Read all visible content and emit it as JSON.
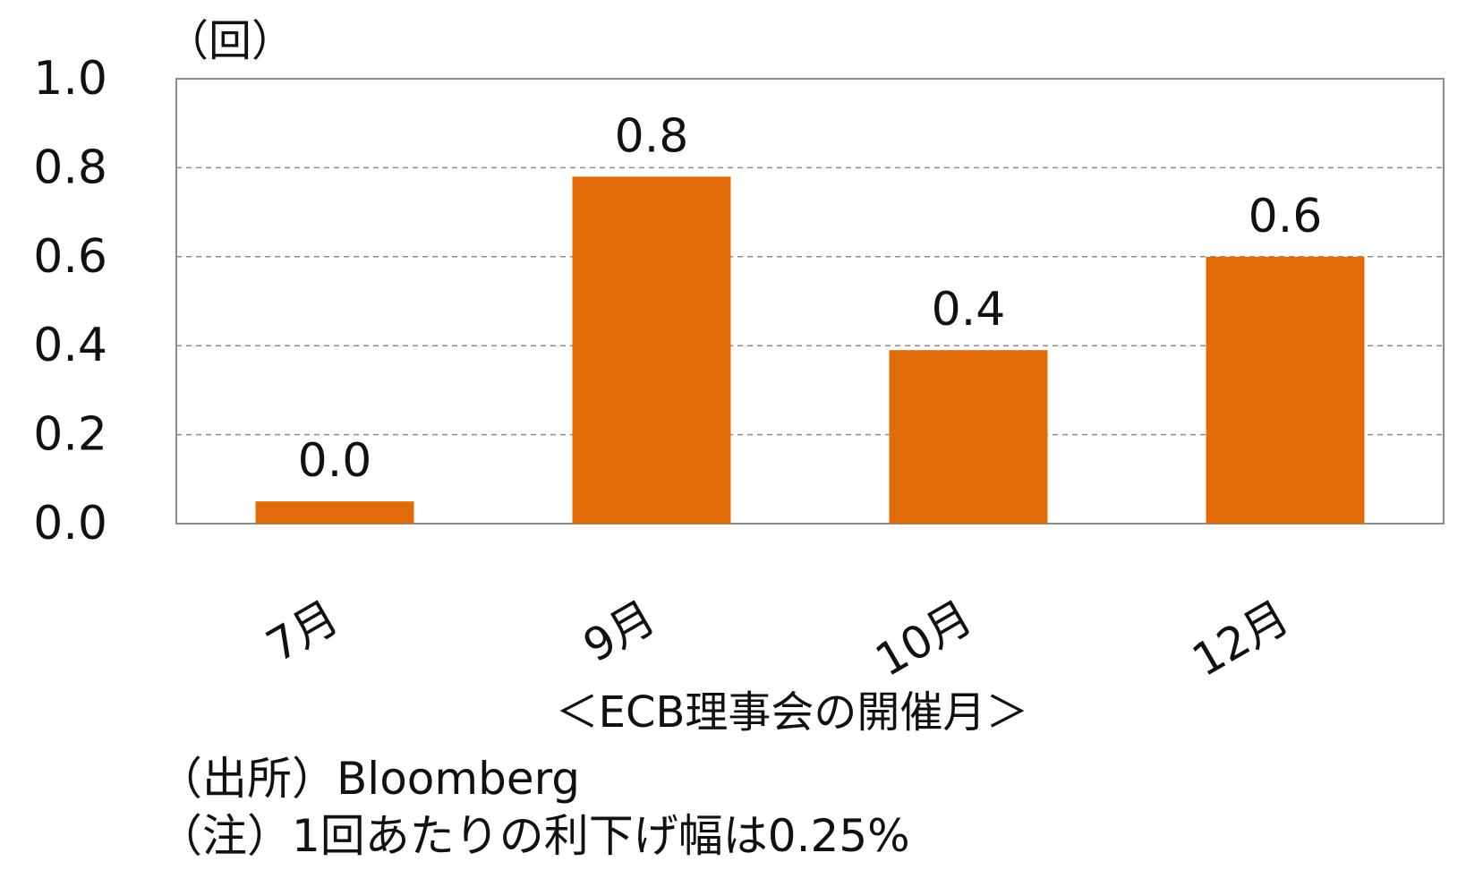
{
  "chart_data": {
    "type": "bar",
    "categories": [
      "7月",
      "9月",
      "10月",
      "12月"
    ],
    "values": [
      0.05,
      0.78,
      0.39,
      0.6
    ],
    "data_labels": [
      "0.0",
      "0.8",
      "0.4",
      "0.6"
    ],
    "y_unit": "（回）",
    "xlabel": "＜ECB理事会の開催月＞",
    "ylim": [
      0,
      1.0
    ],
    "yticks": [
      "0.0",
      "0.2",
      "0.4",
      "0.6",
      "0.8",
      "1.0"
    ],
    "grid": true,
    "bar_color": "#E36C0A"
  },
  "notes": {
    "source": "（出所）Bloomberg",
    "note": "（注）1回あたりの利下げ幅は0.25%"
  }
}
